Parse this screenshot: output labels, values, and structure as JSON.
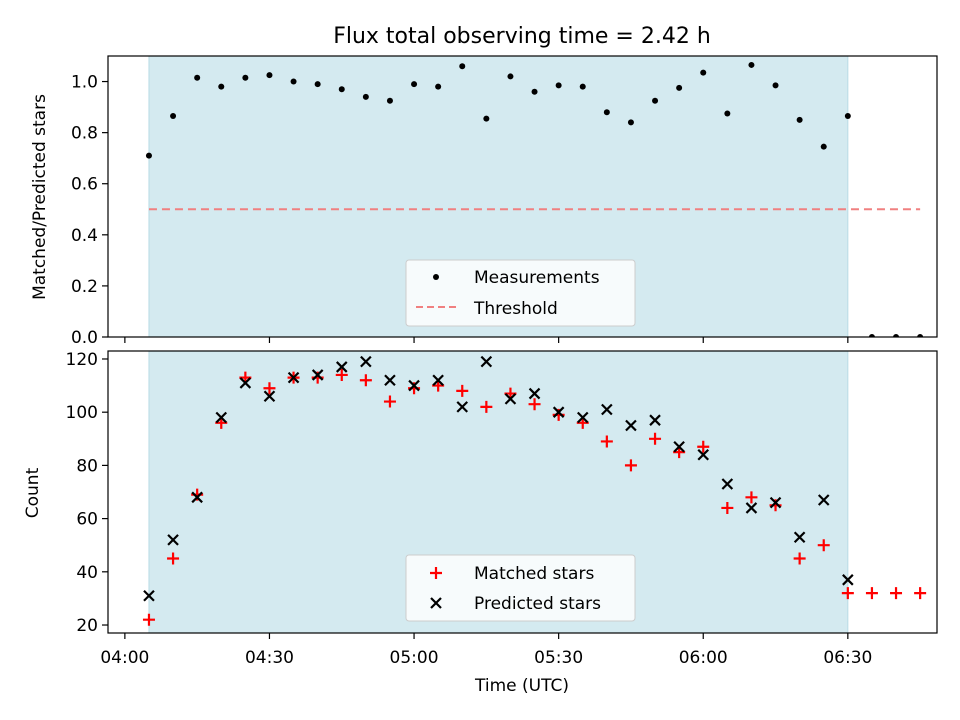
{
  "title": "Flux total observing time = 2.42 h",
  "xlabel": "Time (UTC)",
  "x_tick_labels": [
    "04:00",
    "04:30",
    "05:00",
    "05:30",
    "06:00",
    "06:30"
  ],
  "shade_color": "#d4eaf0",
  "chart_data": [
    {
      "type": "scatter",
      "ylabel": "Matched/Predicted stars",
      "ylim": [
        0,
        1.1
      ],
      "yticks": [
        0.0,
        0.2,
        0.4,
        0.6,
        0.8,
        1.0
      ],
      "y_tick_labels": [
        "0.0",
        "0.2",
        "0.4",
        "0.6",
        "0.8",
        "1.0"
      ],
      "x": [
        "04:05",
        "04:10",
        "04:15",
        "04:20",
        "04:25",
        "04:30",
        "04:35",
        "04:40",
        "04:45",
        "04:50",
        "04:55",
        "05:00",
        "05:05",
        "05:10",
        "05:15",
        "05:20",
        "05:25",
        "05:30",
        "05:35",
        "05:40",
        "05:45",
        "05:50",
        "05:55",
        "06:00",
        "06:05",
        "06:10",
        "06:15",
        "06:20",
        "06:25",
        "06:30",
        "06:35",
        "06:40",
        "06:45"
      ],
      "observing_window": [
        "04:05",
        "06:30"
      ],
      "legend_position": "lower center",
      "series": [
        {
          "name": "Measurements",
          "marker": "dot",
          "color": "#000000",
          "values": [
            0.71,
            0.865,
            1.015,
            0.98,
            1.015,
            1.025,
            1.0,
            0.99,
            0.97,
            0.94,
            0.925,
            0.99,
            0.98,
            1.06,
            0.855,
            1.02,
            0.96,
            0.985,
            0.98,
            0.88,
            0.84,
            0.925,
            0.975,
            1.035,
            0.875,
            1.065,
            0.985,
            0.85,
            0.745,
            0.865,
            0.0,
            0.0,
            0.0
          ]
        },
        {
          "name": "Threshold",
          "marker": "dashed-line",
          "color": "#f08080",
          "y": 0.5,
          "x_range": [
            "04:05",
            "06:45"
          ]
        }
      ]
    },
    {
      "type": "scatter",
      "ylabel": "Count",
      "ylim": [
        17,
        123
      ],
      "yticks": [
        20,
        40,
        60,
        80,
        100,
        120
      ],
      "y_tick_labels": [
        "20",
        "40",
        "60",
        "80",
        "100",
        "120"
      ],
      "x": [
        "04:05",
        "04:10",
        "04:15",
        "04:20",
        "04:25",
        "04:30",
        "04:35",
        "04:40",
        "04:45",
        "04:50",
        "04:55",
        "05:00",
        "05:05",
        "05:10",
        "05:15",
        "05:20",
        "05:25",
        "05:30",
        "05:35",
        "05:40",
        "05:45",
        "05:50",
        "05:55",
        "06:00",
        "06:05",
        "06:10",
        "06:15",
        "06:20",
        "06:25",
        "06:30",
        "06:35",
        "06:40",
        "06:45"
      ],
      "observing_window": [
        "04:05",
        "06:30"
      ],
      "legend_position": "lower center",
      "series": [
        {
          "name": "Matched stars",
          "marker": "plus",
          "color": "#ff0000",
          "values": [
            22,
            45,
            69,
            96,
            113,
            109,
            113,
            113,
            114,
            112,
            104,
            109,
            110,
            108,
            102,
            107,
            103,
            99,
            96,
            89,
            80,
            90,
            85,
            87,
            64,
            68,
            65,
            45,
            50,
            32,
            32,
            32,
            32
          ]
        },
        {
          "name": "Predicted stars",
          "marker": "x",
          "color": "#000000",
          "values": [
            31,
            52,
            68,
            98,
            111,
            106,
            113,
            114,
            117,
            119,
            112,
            110,
            112,
            102,
            119,
            105,
            107,
            100,
            98,
            101,
            95,
            97,
            87,
            84,
            73,
            64,
            66,
            53,
            67,
            37,
            null,
            null,
            null
          ]
        }
      ]
    }
  ]
}
